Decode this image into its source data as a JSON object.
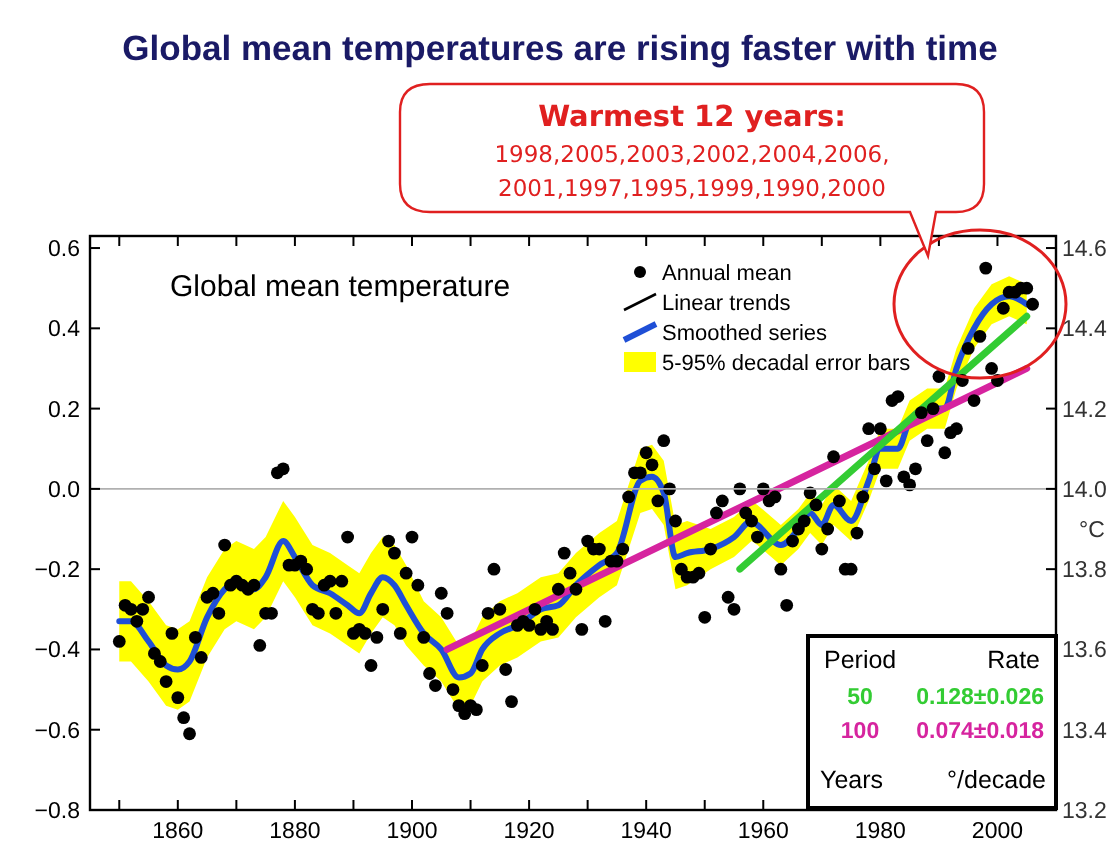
{
  "chart_data": {
    "type": "line",
    "title": "Global mean temperatures are rising faster with time",
    "subtitle": "Global mean temperature",
    "y2label": "°C",
    "xlim": [
      1845,
      2010
    ],
    "xticks": [
      {
        "value": 1850,
        "label": null
      },
      1860,
      {
        "value": 1870,
        "label": null
      },
      1880,
      {
        "value": 1890,
        "label": null
      },
      1900,
      {
        "value": 1910,
        "label": null
      },
      1920,
      {
        "value": 1930,
        "label": null
      },
      1940,
      {
        "value": 1950,
        "label": null
      },
      1960,
      {
        "value": 1970,
        "label": null
      },
      1980,
      {
        "value": 1990,
        "label": null
      },
      2000
    ],
    "ylim": [
      -0.8,
      0.63
    ],
    "yticks": [
      {
        "value": -0.8,
        "label": "−0.8"
      },
      {
        "value": -0.6,
        "label": "−0.6"
      },
      {
        "value": -0.4,
        "label": "−0.4"
      },
      {
        "value": -0.2,
        "label": "−0.2"
      },
      {
        "value": 0,
        "label": "0.0"
      },
      0.2,
      0.4,
      0.6
    ],
    "y2lim": [
      13.2,
      14.63
    ],
    "y2ticks": [
      13.2,
      13.4,
      13.6,
      13.8,
      {
        "value": 14,
        "label": "14.0"
      },
      14.2,
      14.4,
      14.6
    ],
    "ref_lines": [
      {
        "axis": "y",
        "value": 0,
        "color": "#b0b0b0"
      }
    ],
    "legend": "top",
    "grid": false,
    "series": [
      {
        "name": "Annual mean",
        "type": "scatter",
        "color": "#000000",
        "marker": "circle",
        "x": [
          1850,
          1851,
          1852,
          1853,
          1854,
          1855,
          1856,
          1857,
          1858,
          1859,
          1860,
          1861,
          1862,
          1863,
          1864,
          1865,
          1866,
          1867,
          1868,
          1869,
          1870,
          1871,
          1872,
          1873,
          1874,
          1875,
          1876,
          1877,
          1878,
          1879,
          1880,
          1881,
          1882,
          1883,
          1884,
          1885,
          1886,
          1887,
          1888,
          1889,
          1890,
          1891,
          1892,
          1893,
          1894,
          1895,
          1896,
          1897,
          1898,
          1899,
          1900,
          1901,
          1902,
          1903,
          1904,
          1905,
          1906,
          1907,
          1908,
          1909,
          1910,
          1911,
          1912,
          1913,
          1914,
          1915,
          1916,
          1917,
          1918,
          1919,
          1920,
          1921,
          1922,
          1923,
          1924,
          1925,
          1926,
          1927,
          1928,
          1929,
          1930,
          1931,
          1932,
          1933,
          1934,
          1935,
          1936,
          1937,
          1938,
          1939,
          1940,
          1941,
          1942,
          1943,
          1944,
          1945,
          1946,
          1947,
          1948,
          1949,
          1950,
          1951,
          1952,
          1953,
          1954,
          1955,
          1956,
          1957,
          1958,
          1959,
          1960,
          1961,
          1962,
          1963,
          1964,
          1965,
          1966,
          1967,
          1968,
          1969,
          1970,
          1971,
          1972,
          1973,
          1974,
          1975,
          1976,
          1977,
          1978,
          1979,
          1980,
          1981,
          1982,
          1983,
          1984,
          1985,
          1986,
          1987,
          1988,
          1989,
          1990,
          1991,
          1992,
          1993,
          1994,
          1995,
          1996,
          1997,
          1998,
          1999,
          2000,
          2001,
          2002,
          2003,
          2004,
          2005,
          2006
        ],
        "values": [
          -0.38,
          -0.29,
          -0.3,
          -0.33,
          -0.3,
          -0.27,
          -0.41,
          -0.43,
          -0.48,
          -0.36,
          -0.52,
          -0.57,
          -0.61,
          -0.37,
          -0.42,
          -0.27,
          -0.26,
          -0.31,
          -0.14,
          -0.24,
          -0.23,
          -0.24,
          -0.25,
          -0.24,
          -0.39,
          -0.31,
          -0.31,
          0.04,
          0.05,
          -0.19,
          -0.19,
          -0.18,
          -0.2,
          -0.3,
          -0.31,
          -0.24,
          -0.23,
          -0.31,
          -0.23,
          -0.12,
          -0.36,
          -0.35,
          -0.36,
          -0.44,
          -0.37,
          -0.3,
          -0.13,
          -0.16,
          -0.36,
          -0.21,
          -0.12,
          -0.24,
          -0.37,
          -0.46,
          -0.49,
          -0.26,
          -0.31,
          -0.5,
          -0.54,
          -0.56,
          -0.54,
          -0.55,
          -0.44,
          -0.31,
          -0.2,
          -0.3,
          -0.45,
          -0.53,
          -0.34,
          -0.33,
          -0.34,
          -0.3,
          -0.35,
          -0.33,
          -0.35,
          -0.25,
          -0.16,
          -0.21,
          -0.25,
          -0.35,
          -0.13,
          -0.15,
          -0.15,
          -0.33,
          -0.18,
          -0.18,
          -0.15,
          -0.02,
          0.04,
          0.04,
          0.09,
          0.06,
          -0.03,
          0.12,
          0.0,
          -0.08,
          -0.2,
          -0.22,
          -0.22,
          -0.21,
          -0.32,
          -0.15,
          -0.06,
          -0.03,
          -0.27,
          -0.3,
          0.0,
          -0.06,
          -0.08,
          -0.12,
          0.0,
          -0.03,
          -0.02,
          -0.2,
          -0.29,
          -0.13,
          -0.1,
          -0.08,
          -0.01,
          -0.04,
          -0.15,
          -0.1,
          0.08,
          -0.03,
          -0.2,
          -0.2,
          -0.11,
          -0.02,
          0.15,
          0.05,
          0.15,
          0.02,
          0.22,
          0.23,
          0.03,
          0.01,
          0.05,
          0.19,
          0.12,
          0.2,
          0.28,
          0.09,
          0.14,
          0.15,
          0.27,
          0.35,
          0.22,
          0.38,
          0.55,
          0.3,
          0.27,
          0.45,
          0.49,
          0.49,
          0.5,
          0.5,
          0.46
        ]
      },
      {
        "name": "Linear trends",
        "color": "#000000"
      },
      {
        "name": "Smoothed series",
        "color": "#1f4fd6",
        "x": [
          1850,
          1852,
          1855,
          1858,
          1860,
          1862,
          1865,
          1868,
          1870,
          1873,
          1875,
          1878,
          1880,
          1883,
          1886,
          1889,
          1891,
          1893,
          1895,
          1897,
          1899,
          1902,
          1905,
          1908,
          1910,
          1912,
          1915,
          1918,
          1920,
          1922,
          1925,
          1928,
          1932,
          1935,
          1939,
          1941,
          1943,
          1945,
          1947,
          1951,
          1955,
          1958,
          1959,
          1963,
          1966,
          1968,
          1970,
          1972,
          1975,
          1978,
          1980,
          1983,
          1985,
          1988,
          1991,
          1993,
          1996,
          1999,
          2002,
          2005
        ],
        "values": [
          -0.33,
          -0.33,
          -0.38,
          -0.44,
          -0.45,
          -0.43,
          -0.32,
          -0.25,
          -0.23,
          -0.25,
          -0.22,
          -0.13,
          -0.17,
          -0.24,
          -0.26,
          -0.29,
          -0.31,
          -0.26,
          -0.22,
          -0.24,
          -0.29,
          -0.36,
          -0.4,
          -0.47,
          -0.46,
          -0.4,
          -0.36,
          -0.34,
          -0.32,
          -0.3,
          -0.29,
          -0.24,
          -0.19,
          -0.16,
          0.02,
          0.03,
          -0.01,
          -0.17,
          -0.16,
          -0.15,
          -0.12,
          -0.08,
          -0.09,
          -0.14,
          -0.1,
          -0.06,
          -0.09,
          -0.04,
          -0.08,
          0.02,
          0.1,
          0.1,
          0.17,
          0.2,
          0.2,
          0.3,
          0.4,
          0.46,
          0.48,
          0.46
        ],
        "lower": [
          -0.43,
          -0.43,
          -0.48,
          -0.54,
          -0.55,
          -0.53,
          -0.42,
          -0.35,
          -0.33,
          -0.35,
          -0.32,
          -0.23,
          -0.27,
          -0.34,
          -0.36,
          -0.39,
          -0.41,
          -0.36,
          -0.32,
          -0.34,
          -0.39,
          -0.44,
          -0.48,
          -0.55,
          -0.54,
          -0.48,
          -0.44,
          -0.42,
          -0.4,
          -0.38,
          -0.37,
          -0.32,
          -0.27,
          -0.24,
          -0.06,
          -0.05,
          -0.09,
          -0.25,
          -0.24,
          -0.2,
          -0.17,
          -0.13,
          -0.14,
          -0.19,
          -0.15,
          -0.11,
          -0.14,
          -0.09,
          -0.13,
          -0.03,
          0.05,
          0.05,
          0.12,
          0.15,
          0.15,
          0.25,
          0.35,
          0.41,
          0.43,
          0.41
        ],
        "upper": [
          -0.23,
          -0.23,
          -0.28,
          -0.34,
          -0.35,
          -0.33,
          -0.22,
          -0.15,
          -0.13,
          -0.15,
          -0.12,
          -0.03,
          -0.07,
          -0.14,
          -0.16,
          -0.19,
          -0.21,
          -0.16,
          -0.12,
          -0.14,
          -0.19,
          -0.28,
          -0.32,
          -0.39,
          -0.38,
          -0.32,
          -0.28,
          -0.26,
          -0.24,
          -0.22,
          -0.21,
          -0.16,
          -0.11,
          -0.08,
          0.1,
          0.11,
          0.07,
          -0.09,
          -0.08,
          -0.1,
          -0.07,
          -0.03,
          -0.04,
          -0.09,
          -0.05,
          -0.01,
          -0.04,
          0.01,
          -0.03,
          0.07,
          0.15,
          0.15,
          0.22,
          0.25,
          0.25,
          0.35,
          0.45,
          0.51,
          0.53,
          0.51
        ]
      },
      {
        "name": "5-95% decadal error bars",
        "type": "area",
        "color": "#ffff00"
      },
      {
        "color": "#d6249f",
        "x": [
          1906,
          2005
        ],
        "values": [
          -0.4,
          0.3
        ]
      },
      {
        "color": "#33cc33",
        "x": [
          1956,
          2005
        ],
        "values": [
          -0.2,
          0.43
        ]
      }
    ],
    "annotations": [
      "Warmest 12 years:",
      "1998,2005,2003,2002,2004,2006,",
      "2001,1997,1995,1999,1990,2000",
      "Period",
      "Rate",
      "50",
      "0.128±0.026",
      "100",
      "0.074±0.018",
      "Years",
      "°/decade"
    ]
  }
}
